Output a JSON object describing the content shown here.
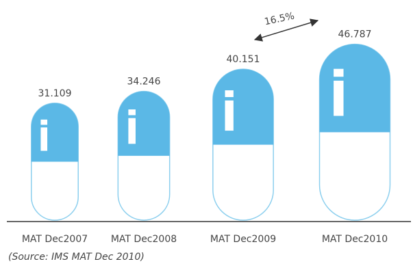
{
  "chart_data": {
    "type": "capsule-bar",
    "categories": [
      "MAT Dec2007",
      "MAT Dec2008",
      "MAT Dec2009",
      "MAT Dec2010"
    ],
    "values": [
      31.109,
      34.246,
      40.151,
      46.787
    ],
    "color": "#5bb8e6",
    "annotation": "16.5%",
    "source": "(Source: IMS MAT Dec 2010)"
  }
}
